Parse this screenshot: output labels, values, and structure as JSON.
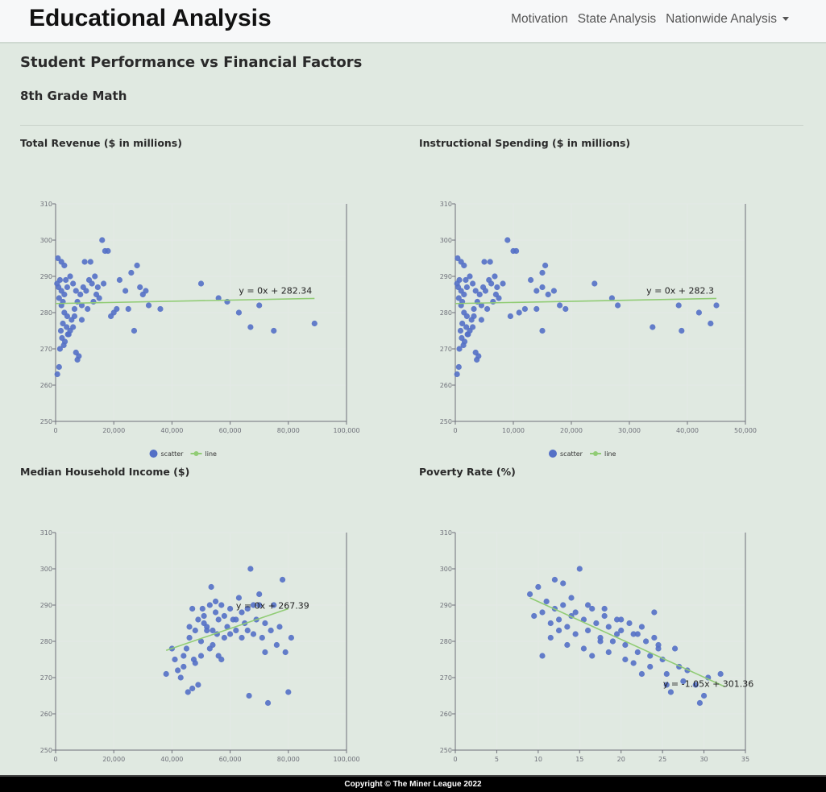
{
  "header": {
    "brand": "Educational Analysis",
    "nav": [
      "Motivation",
      "State Analysis",
      "Nationwide Analysis"
    ]
  },
  "page": {
    "title": "Student Performance vs Financial Factors",
    "subtitle": "8th Grade Math"
  },
  "colors": {
    "scatter": "#5470c6",
    "line": "#91cc75",
    "axis": "#6e7079",
    "grid": "#e4e9e6"
  },
  "legend": {
    "scatter": "scatter",
    "line": "line"
  },
  "footer": {
    "text": "Copyright © The Miner League 2022"
  },
  "chart_data": [
    {
      "type": "scatter",
      "title": "Total Revenue ($ in millions)",
      "xlim": [
        0,
        100000
      ],
      "ylim": [
        250,
        310
      ],
      "xticks": [
        0,
        20000,
        40000,
        60000,
        80000,
        100000
      ],
      "xtick_labels": [
        "0",
        "20,000",
        "40,000",
        "60,000",
        "80,000",
        "100,000"
      ],
      "yticks": [
        250,
        260,
        270,
        280,
        290,
        300,
        310
      ],
      "legend": true,
      "equation": "y = 0x + 282.34",
      "line": [
        [
          0,
          282.5
        ],
        [
          89000,
          283.9
        ]
      ],
      "points": [
        [
          1000,
          287
        ],
        [
          1500,
          289
        ],
        [
          500,
          288
        ],
        [
          2000,
          286
        ],
        [
          3000,
          285
        ],
        [
          1200,
          284
        ],
        [
          2500,
          283
        ],
        [
          4000,
          287
        ],
        [
          3500,
          289
        ],
        [
          5000,
          290
        ],
        [
          6000,
          288
        ],
        [
          7000,
          286
        ],
        [
          2000,
          282
        ],
        [
          3000,
          280
        ],
        [
          4000,
          279
        ],
        [
          2500,
          277
        ],
        [
          1800,
          275
        ],
        [
          3200,
          272
        ],
        [
          4200,
          274
        ],
        [
          2800,
          271
        ],
        [
          5500,
          278
        ],
        [
          6500,
          281
        ],
        [
          7500,
          283
        ],
        [
          8500,
          285
        ],
        [
          9500,
          287
        ],
        [
          10500,
          286
        ],
        [
          11500,
          289
        ],
        [
          12500,
          288
        ],
        [
          13500,
          290
        ],
        [
          14500,
          287
        ],
        [
          800,
          295
        ],
        [
          2000,
          294
        ],
        [
          3000,
          293
        ],
        [
          1200,
          265
        ],
        [
          600,
          263
        ],
        [
          7000,
          269
        ],
        [
          8000,
          268
        ],
        [
          7500,
          267
        ],
        [
          6000,
          276
        ],
        [
          5000,
          275
        ],
        [
          4500,
          274
        ],
        [
          9000,
          282
        ],
        [
          11000,
          281
        ],
        [
          13000,
          283
        ],
        [
          15000,
          284
        ],
        [
          10000,
          294
        ],
        [
          12000,
          294
        ],
        [
          16000,
          300
        ],
        [
          17000,
          297
        ],
        [
          18000,
          297
        ],
        [
          20000,
          280
        ],
        [
          19000,
          279
        ],
        [
          21000,
          281
        ],
        [
          22000,
          289
        ],
        [
          24000,
          286
        ],
        [
          26000,
          291
        ],
        [
          28000,
          293
        ],
        [
          29000,
          287
        ],
        [
          30000,
          285
        ],
        [
          31000,
          286
        ],
        [
          27000,
          275
        ],
        [
          25000,
          281
        ],
        [
          32000,
          282
        ],
        [
          36000,
          281
        ],
        [
          50000,
          288
        ],
        [
          56000,
          284
        ],
        [
          59000,
          283
        ],
        [
          63000,
          280
        ],
        [
          67000,
          276
        ],
        [
          70000,
          282
        ],
        [
          75000,
          275
        ],
        [
          89000,
          277
        ],
        [
          1500,
          270
        ],
        [
          2200,
          273
        ],
        [
          3800,
          276
        ],
        [
          6500,
          279
        ],
        [
          9000,
          278
        ],
        [
          14000,
          285
        ],
        [
          16500,
          288
        ]
      ]
    },
    {
      "type": "scatter",
      "title": "Instructional Spending ($ in millions)",
      "xlim": [
        0,
        50000
      ],
      "ylim": [
        250,
        310
      ],
      "xticks": [
        0,
        10000,
        20000,
        30000,
        40000,
        50000
      ],
      "xtick_labels": [
        "0",
        "10,000",
        "20,000",
        "30,000",
        "40,000",
        "50,000"
      ],
      "yticks": [
        250,
        260,
        270,
        280,
        290,
        300,
        310
      ],
      "legend": true,
      "equation": "y = 0x + 282.3",
      "line": [
        [
          0,
          282.5
        ],
        [
          45000,
          283.9
        ]
      ],
      "points": [
        [
          500,
          287
        ],
        [
          700,
          289
        ],
        [
          300,
          288
        ],
        [
          1000,
          286
        ],
        [
          1500,
          285
        ],
        [
          600,
          284
        ],
        [
          1200,
          283
        ],
        [
          2000,
          287
        ],
        [
          1800,
          289
        ],
        [
          2500,
          290
        ],
        [
          3000,
          288
        ],
        [
          3500,
          286
        ],
        [
          1000,
          282
        ],
        [
          1500,
          280
        ],
        [
          2000,
          279
        ],
        [
          1200,
          277
        ],
        [
          900,
          275
        ],
        [
          1600,
          272
        ],
        [
          2100,
          274
        ],
        [
          1400,
          271
        ],
        [
          2800,
          278
        ],
        [
          3200,
          281
        ],
        [
          3800,
          283
        ],
        [
          4200,
          285
        ],
        [
          4800,
          287
        ],
        [
          5200,
          286
        ],
        [
          5800,
          289
        ],
        [
          6200,
          288
        ],
        [
          6800,
          290
        ],
        [
          7200,
          287
        ],
        [
          400,
          295
        ],
        [
          1000,
          294
        ],
        [
          1500,
          293
        ],
        [
          600,
          265
        ],
        [
          300,
          263
        ],
        [
          3500,
          269
        ],
        [
          4000,
          268
        ],
        [
          3700,
          267
        ],
        [
          3000,
          276
        ],
        [
          2500,
          275
        ],
        [
          2200,
          274
        ],
        [
          4500,
          282
        ],
        [
          5500,
          281
        ],
        [
          6500,
          283
        ],
        [
          7500,
          284
        ],
        [
          5000,
          294
        ],
        [
          6000,
          294
        ],
        [
          9000,
          300
        ],
        [
          10000,
          297
        ],
        [
          10500,
          297
        ],
        [
          11000,
          280
        ],
        [
          9500,
          279
        ],
        [
          12000,
          281
        ],
        [
          13000,
          289
        ],
        [
          14000,
          286
        ],
        [
          15000,
          291
        ],
        [
          15500,
          293
        ],
        [
          15000,
          287
        ],
        [
          16000,
          285
        ],
        [
          17000,
          286
        ],
        [
          15000,
          275
        ],
        [
          14000,
          281
        ],
        [
          18000,
          282
        ],
        [
          19000,
          281
        ],
        [
          24000,
          288
        ],
        [
          27000,
          284
        ],
        [
          28000,
          282
        ],
        [
          34000,
          276
        ],
        [
          38500,
          282
        ],
        [
          39000,
          275
        ],
        [
          42000,
          280
        ],
        [
          44000,
          277
        ],
        [
          45000,
          282
        ],
        [
          700,
          270
        ],
        [
          1100,
          273
        ],
        [
          1900,
          276
        ],
        [
          3200,
          279
        ],
        [
          4500,
          278
        ],
        [
          7000,
          285
        ],
        [
          8200,
          288
        ]
      ]
    },
    {
      "type": "scatter",
      "title": "Median Household Income ($)",
      "xlim": [
        0,
        100000
      ],
      "ylim": [
        250,
        310
      ],
      "xticks": [
        0,
        20000,
        40000,
        60000,
        80000,
        100000
      ],
      "xtick_labels": [
        "0",
        "20,000",
        "40,000",
        "60,000",
        "80,000",
        "100,000"
      ],
      "yticks": [
        250,
        260,
        270,
        280,
        290,
        300,
        310
      ],
      "legend": false,
      "equation": "y = 0x + 267.39",
      "line": [
        [
          38000,
          277.5
        ],
        [
          80000,
          289
        ]
      ],
      "points": [
        [
          38000,
          271
        ],
        [
          40000,
          278
        ],
        [
          41000,
          275
        ],
        [
          42000,
          272
        ],
        [
          43000,
          270
        ],
        [
          44000,
          273
        ],
        [
          45000,
          278
        ],
        [
          45500,
          266
        ],
        [
          46000,
          281
        ],
        [
          47000,
          267
        ],
        [
          47500,
          275
        ],
        [
          48000,
          283
        ],
        [
          49000,
          286
        ],
        [
          50000,
          280
        ],
        [
          50500,
          289
        ],
        [
          51000,
          285
        ],
        [
          52000,
          284
        ],
        [
          53000,
          290
        ],
        [
          53500,
          295
        ],
        [
          54000,
          283
        ],
        [
          55000,
          288
        ],
        [
          55500,
          282
        ],
        [
          56000,
          286
        ],
        [
          57000,
          290
        ],
        [
          58000,
          287
        ],
        [
          59000,
          284
        ],
        [
          60000,
          289
        ],
        [
          61000,
          286
        ],
        [
          62000,
          283
        ],
        [
          63000,
          292
        ],
        [
          64000,
          288
        ],
        [
          65000,
          285
        ],
        [
          66000,
          283
        ],
        [
          66500,
          265
        ],
        [
          67000,
          300
        ],
        [
          68000,
          290
        ],
        [
          69000,
          286
        ],
        [
          70000,
          293
        ],
        [
          71000,
          281
        ],
        [
          72000,
          277
        ],
        [
          73000,
          263
        ],
        [
          74000,
          283
        ],
        [
          75000,
          290
        ],
        [
          76000,
          279
        ],
        [
          77000,
          284
        ],
        [
          78000,
          297
        ],
        [
          79000,
          277
        ],
        [
          80000,
          266
        ],
        [
          81000,
          281
        ],
        [
          44000,
          276
        ],
        [
          46000,
          284
        ],
        [
          48000,
          274
        ],
        [
          50000,
          276
        ],
        [
          52000,
          283
        ],
        [
          54000,
          279
        ],
        [
          56000,
          276
        ],
        [
          58000,
          281
        ],
        [
          60000,
          282
        ],
        [
          62000,
          286
        ],
        [
          64000,
          281
        ],
        [
          66000,
          289
        ],
        [
          68000,
          282
        ],
        [
          70000,
          290
        ],
        [
          72000,
          285
        ],
        [
          47000,
          289
        ],
        [
          49000,
          268
        ],
        [
          51000,
          287
        ],
        [
          53000,
          278
        ],
        [
          55000,
          291
        ],
        [
          57000,
          275
        ]
      ]
    },
    {
      "type": "scatter",
      "title": "Poverty Rate (%)",
      "xlim": [
        0,
        35
      ],
      "ylim": [
        250,
        310
      ],
      "xticks": [
        0,
        5,
        10,
        15,
        20,
        25,
        30,
        35
      ],
      "xtick_labels": [
        "0",
        "5",
        "10",
        "15",
        "20",
        "25",
        "30",
        "35"
      ],
      "yticks": [
        250,
        260,
        270,
        280,
        290,
        300,
        310
      ],
      "legend": false,
      "equation": "y = -1.05x + 301.36",
      "line": [
        [
          9,
          292
        ],
        [
          32.5,
          267.5
        ]
      ],
      "points": [
        [
          9,
          293
        ],
        [
          9.5,
          287
        ],
        [
          10,
          295
        ],
        [
          10.5,
          288
        ],
        [
          11,
          291
        ],
        [
          11.5,
          285
        ],
        [
          12,
          289
        ],
        [
          12.5,
          286
        ],
        [
          13,
          290
        ],
        [
          13.5,
          284
        ],
        [
          14,
          287
        ],
        [
          14.5,
          282
        ],
        [
          15,
          300
        ],
        [
          15.5,
          286
        ],
        [
          16,
          283
        ],
        [
          16.5,
          289
        ],
        [
          17,
          285
        ],
        [
          17.5,
          281
        ],
        [
          18,
          287
        ],
        [
          18.5,
          284
        ],
        [
          19,
          280
        ],
        [
          19.5,
          286
        ],
        [
          20,
          283
        ],
        [
          20.5,
          279
        ],
        [
          21,
          285
        ],
        [
          21.5,
          282
        ],
        [
          22,
          277
        ],
        [
          22.5,
          284
        ],
        [
          23,
          280
        ],
        [
          23.5,
          276
        ],
        [
          24,
          288
        ],
        [
          24.5,
          279
        ],
        [
          25,
          275
        ],
        [
          25.5,
          271
        ],
        [
          26,
          266
        ],
        [
          26.5,
          278
        ],
        [
          27,
          273
        ],
        [
          27.5,
          269
        ],
        [
          28,
          272
        ],
        [
          29,
          268
        ],
        [
          29.5,
          263
        ],
        [
          30,
          265
        ],
        [
          30.5,
          270
        ],
        [
          32,
          271
        ],
        [
          10.5,
          276
        ],
        [
          11.5,
          281
        ],
        [
          12.5,
          283
        ],
        [
          13.5,
          279
        ],
        [
          14.5,
          288
        ],
        [
          15.5,
          278
        ],
        [
          16.5,
          276
        ],
        [
          17.5,
          280
        ],
        [
          18.5,
          277
        ],
        [
          19.5,
          282
        ],
        [
          20.5,
          275
        ],
        [
          21.5,
          274
        ],
        [
          22.5,
          271
        ],
        [
          23.5,
          273
        ],
        [
          24.5,
          278
        ],
        [
          25.5,
          268
        ],
        [
          12,
          297
        ],
        [
          13,
          296
        ],
        [
          14,
          292
        ],
        [
          16,
          290
        ],
        [
          18,
          289
        ],
        [
          20,
          286
        ],
        [
          22,
          282
        ],
        [
          24,
          281
        ]
      ]
    }
  ]
}
